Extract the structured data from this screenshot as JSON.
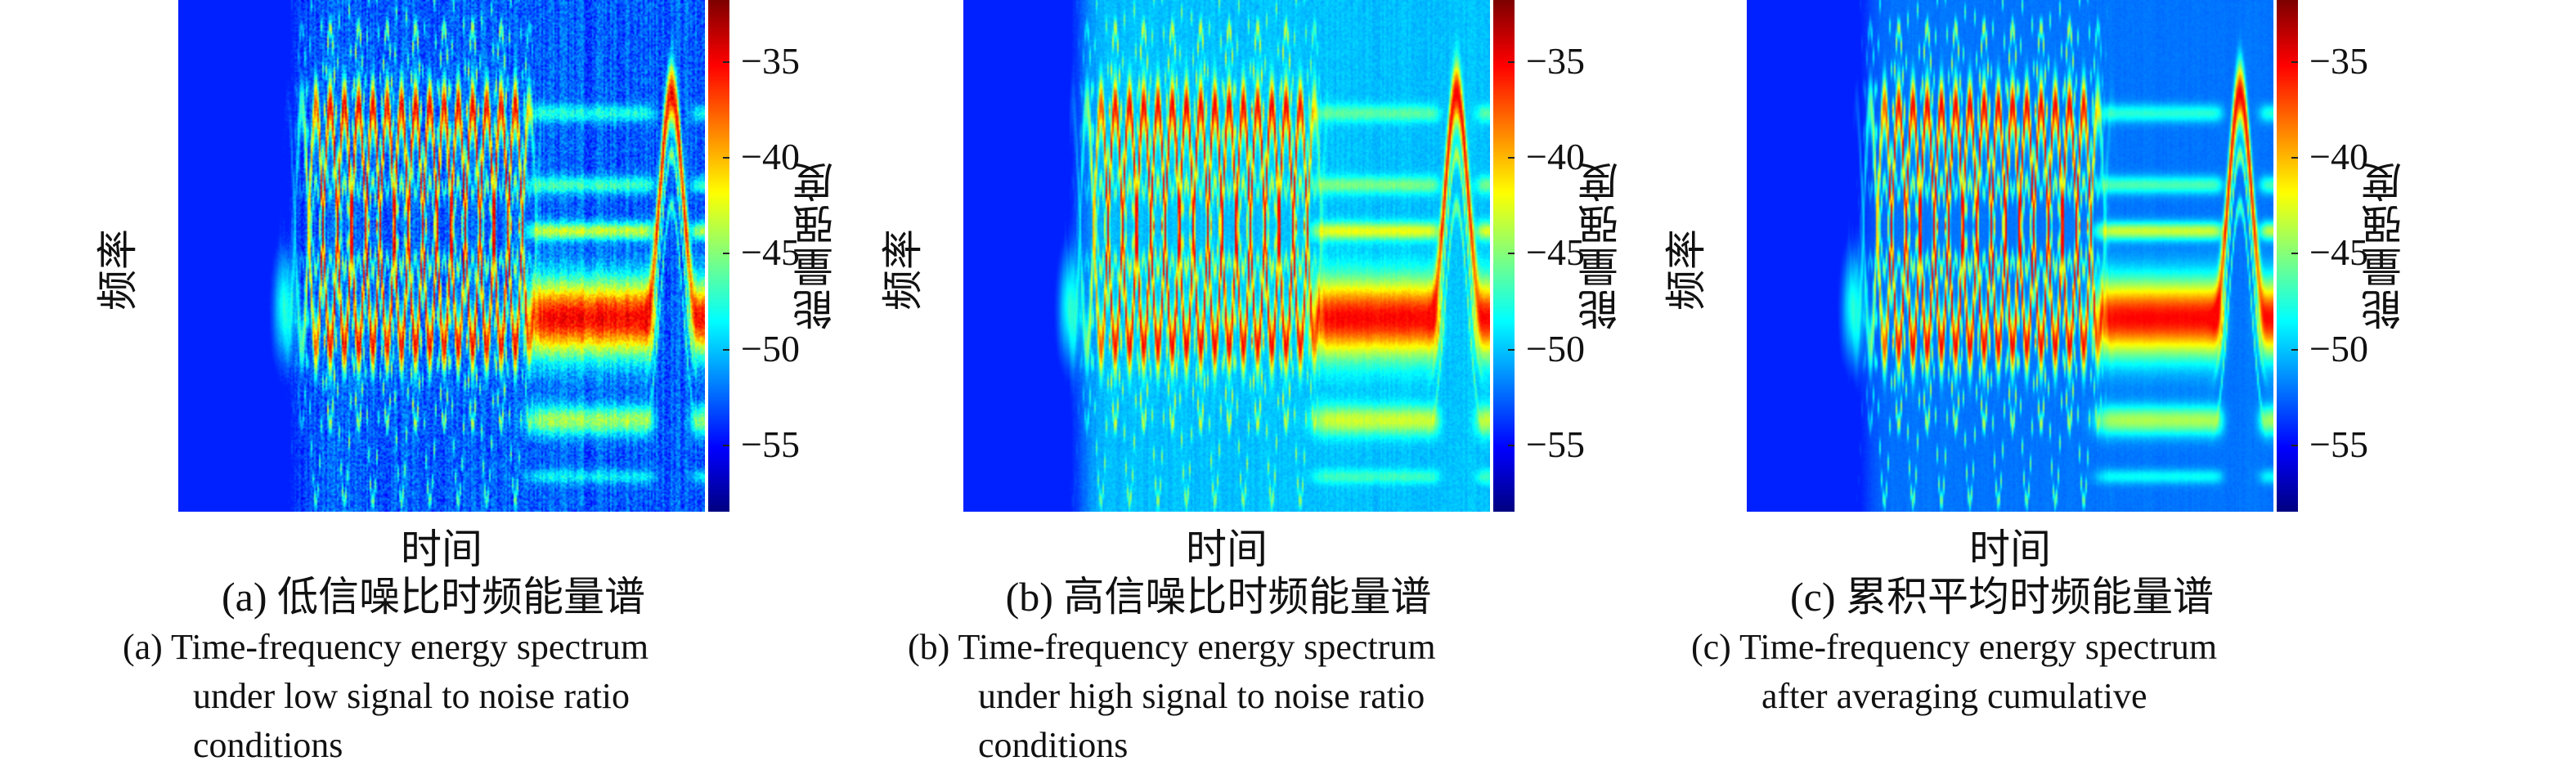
{
  "panels": [
    {
      "id": "a",
      "xlabel": "时间",
      "ylabel": "频率",
      "colorbar_label": "能量强度",
      "caption_cn": "(a) 低信噪比时频能量谱",
      "caption_en": [
        "(a) Time-frequency energy spectrum",
        "under low signal to noise ratio",
        "conditions"
      ]
    },
    {
      "id": "b",
      "xlabel": "时间",
      "ylabel": "频率",
      "colorbar_label": "能量强度",
      "caption_cn": "(b) 高信噪比时频能量谱",
      "caption_en": [
        "(b) Time-frequency energy spectrum",
        "under high signal to noise ratio",
        "conditions"
      ]
    },
    {
      "id": "c",
      "xlabel": "时间",
      "ylabel": "频率",
      "colorbar_label": "能量强度",
      "caption_cn": "(c) 累积平均时频能量谱",
      "caption_en": [
        "(c) Time-frequency energy spectrum",
        "after averaging cumulative"
      ]
    }
  ],
  "chart_data": [
    {
      "type": "heatmap",
      "title": "(a) 低信噪比时频能量谱",
      "xlabel": "时间",
      "ylabel": "频率",
      "colorbar": {
        "label": "能量强度",
        "ticks": [
          "−35",
          "−40",
          "−45",
          "−50",
          "−55"
        ],
        "tick_values": [
          -35,
          -40,
          -45,
          -50,
          -55
        ],
        "range": [
          -58.5,
          -31.8
        ],
        "colormap": "jet"
      }
    },
    {
      "type": "heatmap",
      "title": "(b) 高信噪比时频能量谱",
      "xlabel": "时间",
      "ylabel": "频率",
      "colorbar": {
        "label": "能量强度",
        "ticks": [
          "−35",
          "−40",
          "−45",
          "−50",
          "−55"
        ],
        "tick_values": [
          -35,
          -40,
          -45,
          -50,
          -55
        ],
        "range": [
          -58.5,
          -31.8
        ],
        "colormap": "jet"
      }
    },
    {
      "type": "heatmap",
      "title": "(c) 累积平均时频能量谱",
      "xlabel": "时间",
      "ylabel": "频率",
      "colorbar": {
        "label": "能量强度",
        "ticks": [
          "−35",
          "−40",
          "−45",
          "−50",
          "−55"
        ],
        "tick_values": [
          -35,
          -40,
          -45,
          -50,
          -55
        ],
        "range": [
          -58.5,
          -31.8
        ],
        "colormap": "jet"
      }
    }
  ]
}
